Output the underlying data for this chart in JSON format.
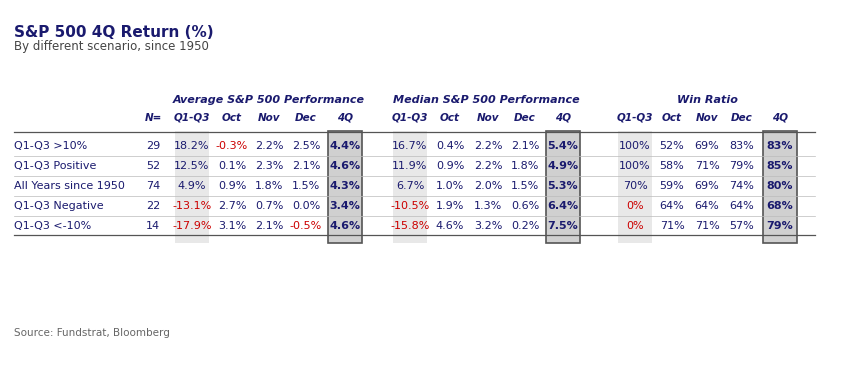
{
  "title": "S&P 500 4Q Return (%)",
  "subtitle": "By different scenario, since 1950",
  "source": "Source: Fundstrat, Bloomberg",
  "row_labels": [
    "Q1-Q3 >10%",
    "Q1-Q3 Positive",
    "All Years since 1950",
    "Q1-Q3 Negative",
    "Q1-Q3 <-10%"
  ],
  "n_values": [
    "29",
    "52",
    "74",
    "22",
    "14"
  ],
  "section_headers": [
    "Average S&P 500 Performance",
    "Median S&P 500 Performance",
    "Win Ratio"
  ],
  "avg_data": [
    [
      "18.2%",
      "-0.3%",
      "2.2%",
      "2.5%",
      "4.4%"
    ],
    [
      "12.5%",
      "0.1%",
      "2.3%",
      "2.1%",
      "4.6%"
    ],
    [
      "4.9%",
      "0.9%",
      "1.8%",
      "1.5%",
      "4.3%"
    ],
    [
      "-13.1%",
      "2.7%",
      "0.7%",
      "0.0%",
      "3.4%"
    ],
    [
      "-17.9%",
      "3.1%",
      "2.1%",
      "-0.5%",
      "4.6%"
    ]
  ],
  "med_data": [
    [
      "16.7%",
      "0.4%",
      "2.2%",
      "2.1%",
      "5.4%"
    ],
    [
      "11.9%",
      "0.9%",
      "2.2%",
      "1.8%",
      "4.9%"
    ],
    [
      "6.7%",
      "1.0%",
      "2.0%",
      "1.5%",
      "5.3%"
    ],
    [
      "-10.5%",
      "1.9%",
      "1.3%",
      "0.6%",
      "6.4%"
    ],
    [
      "-15.8%",
      "4.6%",
      "3.2%",
      "0.2%",
      "7.5%"
    ]
  ],
  "win_data": [
    [
      "100%",
      "52%",
      "69%",
      "83%",
      "83%"
    ],
    [
      "100%",
      "58%",
      "71%",
      "79%",
      "85%"
    ],
    [
      "70%",
      "59%",
      "69%",
      "74%",
      "80%"
    ],
    [
      "0%",
      "64%",
      "64%",
      "64%",
      "68%"
    ],
    [
      "0%",
      "71%",
      "71%",
      "57%",
      "79%"
    ]
  ],
  "background_color": "#ffffff",
  "row_label_color": "#1a1a6e",
  "header_color": "#1a1a6e",
  "normal_color": "#1a1a6e",
  "red_color": "#cc0000"
}
